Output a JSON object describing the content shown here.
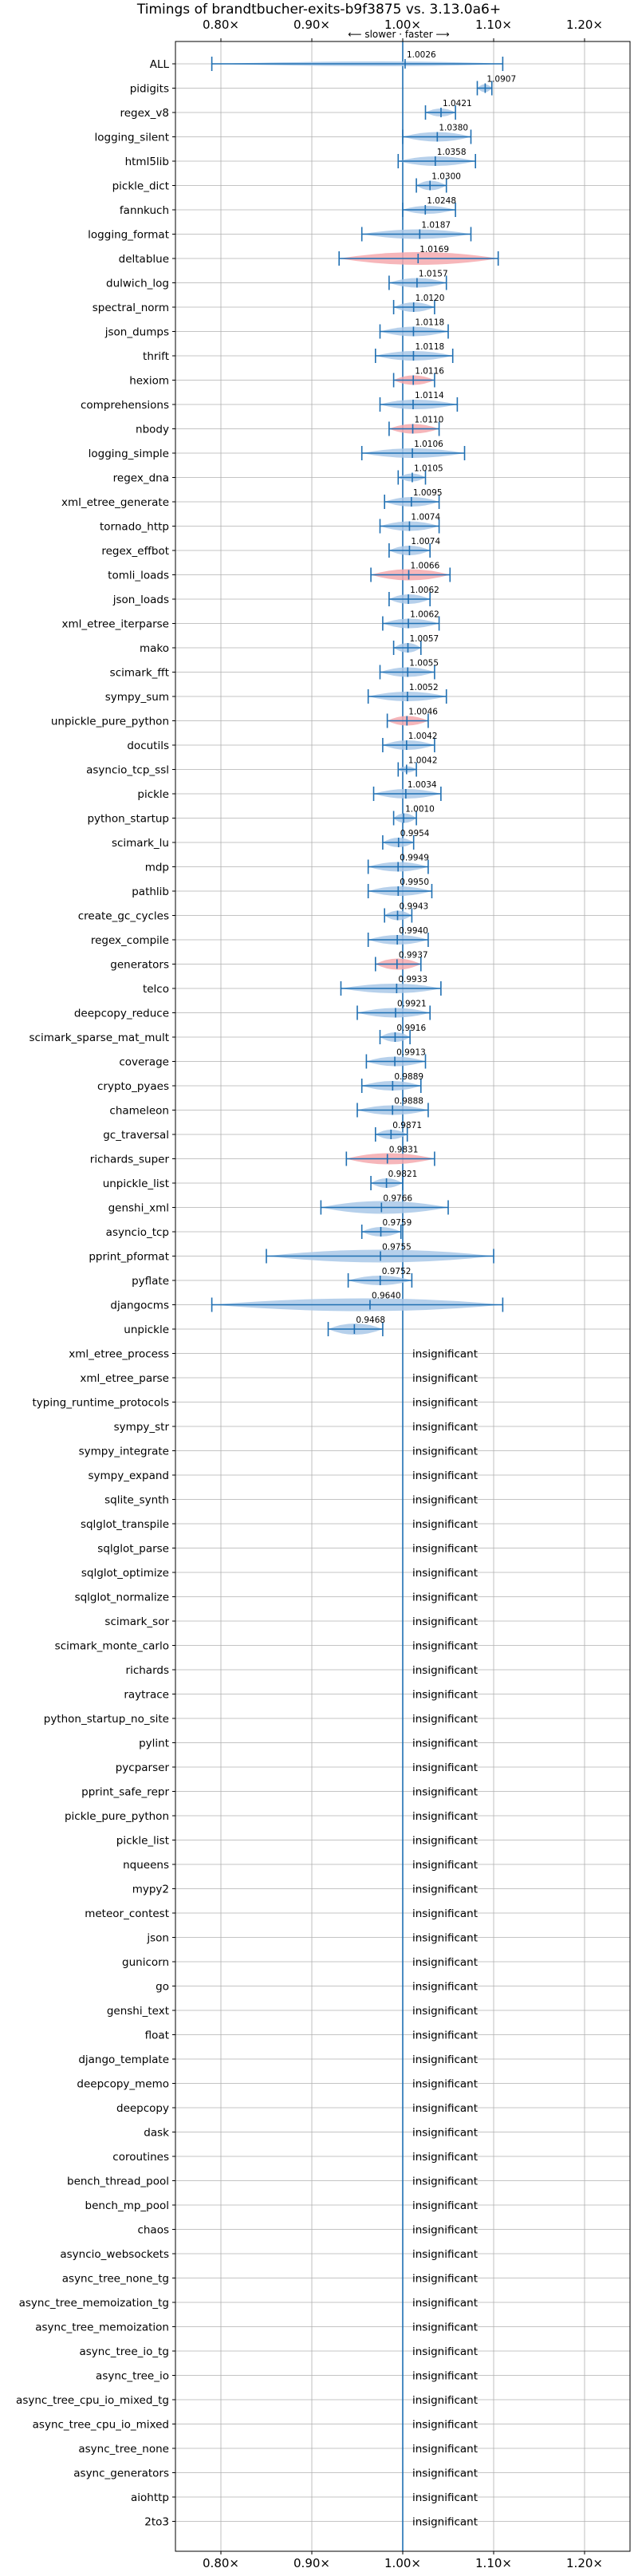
{
  "chart_data": {
    "type": "violin",
    "title": "Timings of brandtbucher-exits-b9f3875 vs. 3.13.0a6+",
    "axis_note": "⟵ slower  ·  faster ⟶",
    "xlim": [
      0.75,
      1.25
    ],
    "x_ticks": [
      0.8,
      0.9,
      1.0,
      1.1,
      1.2
    ],
    "x_tick_labels": [
      "0.80×",
      "0.90×",
      "1.00×",
      "1.10×",
      "1.20×"
    ],
    "reference_line": 1.0,
    "grid": true,
    "colors": {
      "faster": "#a9c8e8",
      "slower": "#f4a9ae",
      "whisker": "#1f6fb2",
      "grid": "#b0b0b0"
    },
    "insignificant_text": "insignificant",
    "benchmarks": [
      {
        "name": "ALL",
        "value": 1.0026,
        "lo": 0.79,
        "hi": 1.11,
        "color": "faster",
        "width": 0.3
      },
      {
        "name": "pidigits",
        "value": 1.0907,
        "lo": 1.082,
        "hi": 1.098,
        "color": "faster",
        "width": 0.5
      },
      {
        "name": "regex_v8",
        "value": 1.0421,
        "lo": 1.025,
        "hi": 1.058,
        "color": "faster",
        "width": 0.5
      },
      {
        "name": "logging_silent",
        "value": 1.038,
        "lo": 1.0,
        "hi": 1.075,
        "color": "faster",
        "width": 0.6
      },
      {
        "name": "html5lib",
        "value": 1.0358,
        "lo": 0.995,
        "hi": 1.08,
        "color": "faster",
        "width": 0.6
      },
      {
        "name": "pickle_dict",
        "value": 1.03,
        "lo": 1.015,
        "hi": 1.048,
        "color": "faster",
        "width": 0.6
      },
      {
        "name": "fannkuch",
        "value": 1.0248,
        "lo": 1.0,
        "hi": 1.058,
        "color": "faster",
        "width": 0.5
      },
      {
        "name": "logging_format",
        "value": 1.0187,
        "lo": 0.955,
        "hi": 1.075,
        "color": "faster",
        "width": 0.6
      },
      {
        "name": "deltablue",
        "value": 1.0169,
        "lo": 0.93,
        "hi": 1.105,
        "color": "slower",
        "width": 0.8
      },
      {
        "name": "dulwich_log",
        "value": 1.0157,
        "lo": 0.985,
        "hi": 1.048,
        "color": "faster",
        "width": 0.6
      },
      {
        "name": "spectral_norm",
        "value": 1.012,
        "lo": 0.99,
        "hi": 1.035,
        "color": "faster",
        "width": 0.6
      },
      {
        "name": "json_dumps",
        "value": 1.0118,
        "lo": 0.975,
        "hi": 1.05,
        "color": "faster",
        "width": 0.6
      },
      {
        "name": "thrift",
        "value": 1.0118,
        "lo": 0.97,
        "hi": 1.055,
        "color": "faster",
        "width": 0.6
      },
      {
        "name": "hexiom",
        "value": 1.0116,
        "lo": 0.99,
        "hi": 1.035,
        "color": "slower",
        "width": 0.6
      },
      {
        "name": "comprehensions",
        "value": 1.0114,
        "lo": 0.975,
        "hi": 1.06,
        "color": "faster",
        "width": 0.6
      },
      {
        "name": "nbody",
        "value": 1.011,
        "lo": 0.985,
        "hi": 1.04,
        "color": "slower",
        "width": 0.6
      },
      {
        "name": "logging_simple",
        "value": 1.0106,
        "lo": 0.955,
        "hi": 1.068,
        "color": "faster",
        "width": 0.6
      },
      {
        "name": "regex_dna",
        "value": 1.0105,
        "lo": 0.995,
        "hi": 1.025,
        "color": "faster",
        "width": 0.5
      },
      {
        "name": "xml_etree_generate",
        "value": 1.0095,
        "lo": 0.98,
        "hi": 1.04,
        "color": "faster",
        "width": 0.6
      },
      {
        "name": "tornado_http",
        "value": 1.0074,
        "lo": 0.975,
        "hi": 1.04,
        "color": "faster",
        "width": 0.6
      },
      {
        "name": "regex_effbot",
        "value": 1.0074,
        "lo": 0.985,
        "hi": 1.03,
        "color": "faster",
        "width": 0.6
      },
      {
        "name": "tomli_loads",
        "value": 1.0066,
        "lo": 0.965,
        "hi": 1.052,
        "color": "slower",
        "width": 0.7
      },
      {
        "name": "json_loads",
        "value": 1.0062,
        "lo": 0.985,
        "hi": 1.03,
        "color": "faster",
        "width": 0.6
      },
      {
        "name": "xml_etree_iterparse",
        "value": 1.0062,
        "lo": 0.978,
        "hi": 1.04,
        "color": "faster",
        "width": 0.6
      },
      {
        "name": "mako",
        "value": 1.0057,
        "lo": 0.99,
        "hi": 1.02,
        "color": "faster",
        "width": 0.6
      },
      {
        "name": "scimark_fft",
        "value": 1.0055,
        "lo": 0.975,
        "hi": 1.035,
        "color": "faster",
        "width": 0.6
      },
      {
        "name": "sympy_sum",
        "value": 1.0052,
        "lo": 0.962,
        "hi": 1.048,
        "color": "faster",
        "width": 0.6
      },
      {
        "name": "unpickle_pure_python",
        "value": 1.0046,
        "lo": 0.983,
        "hi": 1.028,
        "color": "slower",
        "width": 0.6
      },
      {
        "name": "docutils",
        "value": 1.0042,
        "lo": 0.978,
        "hi": 1.035,
        "color": "faster",
        "width": 0.6
      },
      {
        "name": "asyncio_tcp_ssl",
        "value": 1.0042,
        "lo": 0.995,
        "hi": 1.015,
        "color": "faster",
        "width": 0.4
      },
      {
        "name": "pickle",
        "value": 1.0034,
        "lo": 0.968,
        "hi": 1.042,
        "color": "faster",
        "width": 0.6
      },
      {
        "name": "python_startup",
        "value": 1.001,
        "lo": 0.99,
        "hi": 1.015,
        "color": "faster",
        "width": 0.6
      },
      {
        "name": "scimark_lu",
        "value": 0.9954,
        "lo": 0.978,
        "hi": 1.012,
        "color": "faster",
        "width": 0.6
      },
      {
        "name": "mdp",
        "value": 0.9949,
        "lo": 0.962,
        "hi": 1.028,
        "color": "faster",
        "width": 0.6
      },
      {
        "name": "pathlib",
        "value": 0.995,
        "lo": 0.962,
        "hi": 1.032,
        "color": "faster",
        "width": 0.6
      },
      {
        "name": "create_gc_cycles",
        "value": 0.9943,
        "lo": 0.98,
        "hi": 1.01,
        "color": "faster",
        "width": 0.6
      },
      {
        "name": "regex_compile",
        "value": 0.994,
        "lo": 0.962,
        "hi": 1.028,
        "color": "faster",
        "width": 0.6
      },
      {
        "name": "generators",
        "value": 0.9937,
        "lo": 0.97,
        "hi": 1.02,
        "color": "slower",
        "width": 0.7
      },
      {
        "name": "telco",
        "value": 0.9933,
        "lo": 0.932,
        "hi": 1.042,
        "color": "faster",
        "width": 0.6
      },
      {
        "name": "deepcopy_reduce",
        "value": 0.9921,
        "lo": 0.95,
        "hi": 1.03,
        "color": "faster",
        "width": 0.6
      },
      {
        "name": "scimark_sparse_mat_mult",
        "value": 0.9916,
        "lo": 0.975,
        "hi": 1.008,
        "color": "faster",
        "width": 0.6
      },
      {
        "name": "coverage",
        "value": 0.9913,
        "lo": 0.96,
        "hi": 1.025,
        "color": "faster",
        "width": 0.6
      },
      {
        "name": "crypto_pyaes",
        "value": 0.9889,
        "lo": 0.955,
        "hi": 1.02,
        "color": "faster",
        "width": 0.6
      },
      {
        "name": "chameleon",
        "value": 0.9888,
        "lo": 0.95,
        "hi": 1.028,
        "color": "faster",
        "width": 0.6
      },
      {
        "name": "gc_traversal",
        "value": 0.9871,
        "lo": 0.97,
        "hi": 1.005,
        "color": "faster",
        "width": 0.6
      },
      {
        "name": "richards_super",
        "value": 0.9831,
        "lo": 0.938,
        "hi": 1.035,
        "color": "slower",
        "width": 0.7
      },
      {
        "name": "unpickle_list",
        "value": 0.9821,
        "lo": 0.965,
        "hi": 1.0,
        "color": "faster",
        "width": 0.6
      },
      {
        "name": "genshi_xml",
        "value": 0.9766,
        "lo": 0.91,
        "hi": 1.05,
        "color": "faster",
        "width": 0.8
      },
      {
        "name": "asyncio_tcp",
        "value": 0.9759,
        "lo": 0.955,
        "hi": 0.998,
        "color": "faster",
        "width": 0.6
      },
      {
        "name": "pprint_pformat",
        "value": 0.9755,
        "lo": 0.85,
        "hi": 1.1,
        "color": "faster",
        "width": 0.8
      },
      {
        "name": "pyflate",
        "value": 0.9752,
        "lo": 0.94,
        "hi": 1.01,
        "color": "faster",
        "width": 0.6
      },
      {
        "name": "djangocms",
        "value": 0.964,
        "lo": 0.79,
        "hi": 1.11,
        "color": "faster",
        "width": 0.8
      },
      {
        "name": "unpickle",
        "value": 0.9468,
        "lo": 0.918,
        "hi": 0.978,
        "color": "faster",
        "width": 0.7
      },
      {
        "name": "xml_etree_process",
        "value": null
      },
      {
        "name": "xml_etree_parse",
        "value": null
      },
      {
        "name": "typing_runtime_protocols",
        "value": null
      },
      {
        "name": "sympy_str",
        "value": null
      },
      {
        "name": "sympy_integrate",
        "value": null
      },
      {
        "name": "sympy_expand",
        "value": null
      },
      {
        "name": "sqlite_synth",
        "value": null
      },
      {
        "name": "sqlglot_transpile",
        "value": null
      },
      {
        "name": "sqlglot_parse",
        "value": null
      },
      {
        "name": "sqlglot_optimize",
        "value": null
      },
      {
        "name": "sqlglot_normalize",
        "value": null
      },
      {
        "name": "scimark_sor",
        "value": null
      },
      {
        "name": "scimark_monte_carlo",
        "value": null
      },
      {
        "name": "richards",
        "value": null
      },
      {
        "name": "raytrace",
        "value": null
      },
      {
        "name": "python_startup_no_site",
        "value": null
      },
      {
        "name": "pylint",
        "value": null
      },
      {
        "name": "pycparser",
        "value": null
      },
      {
        "name": "pprint_safe_repr",
        "value": null
      },
      {
        "name": "pickle_pure_python",
        "value": null
      },
      {
        "name": "pickle_list",
        "value": null
      },
      {
        "name": "nqueens",
        "value": null
      },
      {
        "name": "mypy2",
        "value": null
      },
      {
        "name": "meteor_contest",
        "value": null
      },
      {
        "name": "json",
        "value": null
      },
      {
        "name": "gunicorn",
        "value": null
      },
      {
        "name": "go",
        "value": null
      },
      {
        "name": "genshi_text",
        "value": null
      },
      {
        "name": "float",
        "value": null
      },
      {
        "name": "django_template",
        "value": null
      },
      {
        "name": "deepcopy_memo",
        "value": null
      },
      {
        "name": "deepcopy",
        "value": null
      },
      {
        "name": "dask",
        "value": null
      },
      {
        "name": "coroutines",
        "value": null
      },
      {
        "name": "bench_thread_pool",
        "value": null
      },
      {
        "name": "bench_mp_pool",
        "value": null
      },
      {
        "name": "chaos",
        "value": null
      },
      {
        "name": "asyncio_websockets",
        "value": null
      },
      {
        "name": "async_tree_none_tg",
        "value": null
      },
      {
        "name": "async_tree_memoization_tg",
        "value": null
      },
      {
        "name": "async_tree_memoization",
        "value": null
      },
      {
        "name": "async_tree_io_tg",
        "value": null
      },
      {
        "name": "async_tree_io",
        "value": null
      },
      {
        "name": "async_tree_cpu_io_mixed_tg",
        "value": null
      },
      {
        "name": "async_tree_cpu_io_mixed",
        "value": null
      },
      {
        "name": "async_tree_none",
        "value": null
      },
      {
        "name": "async_generators",
        "value": null
      },
      {
        "name": "aiohttp",
        "value": null
      },
      {
        "name": "2to3",
        "value": null
      }
    ]
  }
}
